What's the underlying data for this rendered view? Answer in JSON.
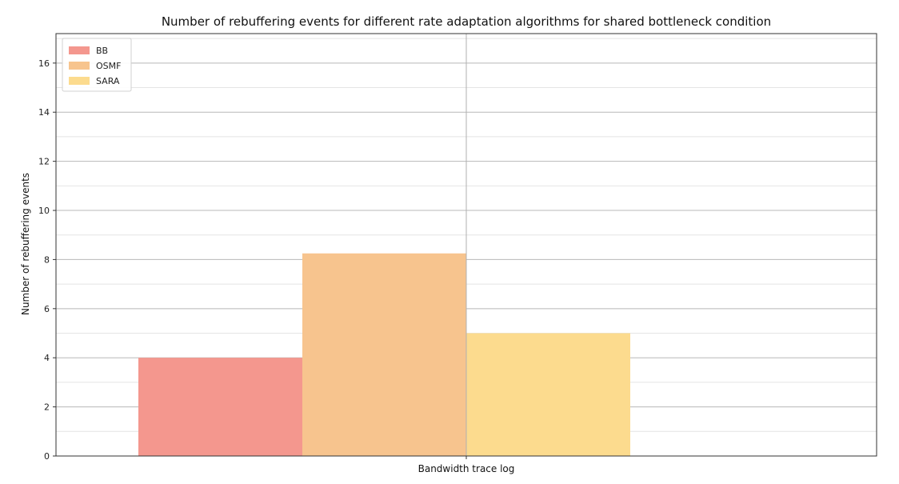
{
  "chart_data": {
    "type": "bar",
    "title": "Number of rebuffering events for different rate adaptation algorithms for shared bottleneck condition",
    "xlabel": "Bandwidth trace log",
    "ylabel": "Number of rebuffering events",
    "categories": [
      ""
    ],
    "series": [
      {
        "name": "BB",
        "values": [
          4.0
        ],
        "color": "#f4978e"
      },
      {
        "name": "OSMF",
        "values": [
          8.25
        ],
        "color": "#f7c48e"
      },
      {
        "name": "SARA",
        "values": [
          5.0
        ],
        "color": "#fcdb8e"
      }
    ],
    "ylim": [
      0,
      17.2
    ],
    "yticks": [
      0,
      2,
      4,
      6,
      8,
      10,
      12,
      14,
      16
    ],
    "grid": true,
    "legend_position": "top-left"
  }
}
